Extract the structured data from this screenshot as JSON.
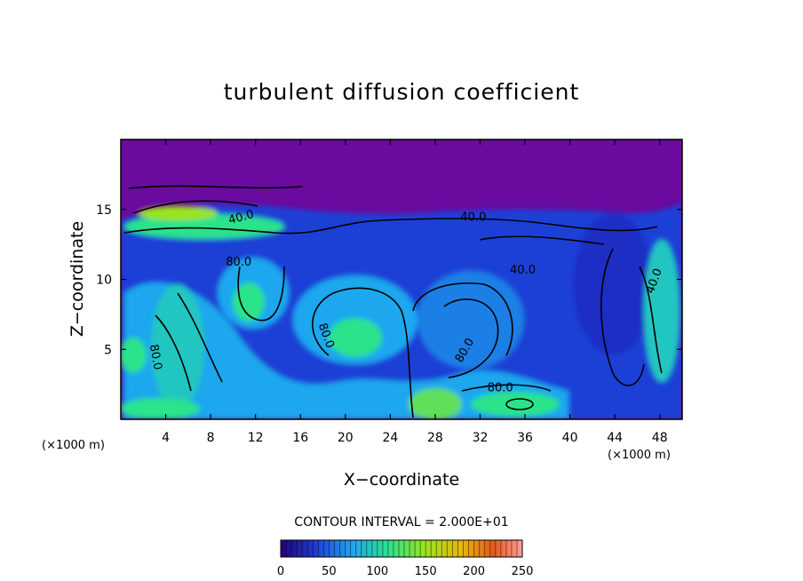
{
  "chart_data": {
    "type": "heatmap",
    "title": "turbulent diffusion coefficient",
    "xlabel": "X−coordinate",
    "ylabel": "Z−coordinate",
    "x_unit_left": "(×1000 m)",
    "x_unit_right": "(×1000 m)",
    "xlim": [
      0,
      50
    ],
    "ylim": [
      0,
      20
    ],
    "x_ticks": [
      4,
      8,
      12,
      16,
      20,
      24,
      28,
      32,
      36,
      40,
      44,
      48
    ],
    "y_ticks": [
      5,
      10,
      15
    ],
    "contour_interval_text": "CONTOUR INTERVAL = 2.000E+01",
    "contour_interval": 20,
    "colorbar": {
      "range": [
        0,
        250
      ],
      "ticks": [
        0,
        50,
        100,
        150,
        200,
        250
      ],
      "colors": [
        "#24007a",
        "#1f3fd9",
        "#1fa8ee",
        "#2be38a",
        "#9be31d",
        "#e8b70c",
        "#e25a1a",
        "#ff9d9d"
      ]
    },
    "contour_labels": [
      {
        "text": "80.0",
        "x": 10.5,
        "y": 11.0,
        "rotate": 0
      },
      {
        "text": "80.0",
        "x": 18.0,
        "y": 5.9,
        "rotate": 70
      },
      {
        "text": "80.0",
        "x": 2.8,
        "y": 4.4,
        "rotate": 80
      },
      {
        "text": "80.0",
        "x": 30.9,
        "y": 4.8,
        "rotate": -60
      },
      {
        "text": "80.0",
        "x": 33.8,
        "y": 2.0,
        "rotate": 0
      },
      {
        "text": "40.0",
        "x": 31.4,
        "y": 14.2,
        "rotate": 0
      },
      {
        "text": "40.0",
        "x": 35.8,
        "y": 10.4,
        "rotate": 0
      },
      {
        "text": "40.0",
        "x": 47.8,
        "y": 9.8,
        "rotate": -70
      },
      {
        "text": "40.0",
        "x": 10.8,
        "y": 14.2,
        "rotate": -15
      }
    ],
    "background_color": "#6a0a9e"
  }
}
